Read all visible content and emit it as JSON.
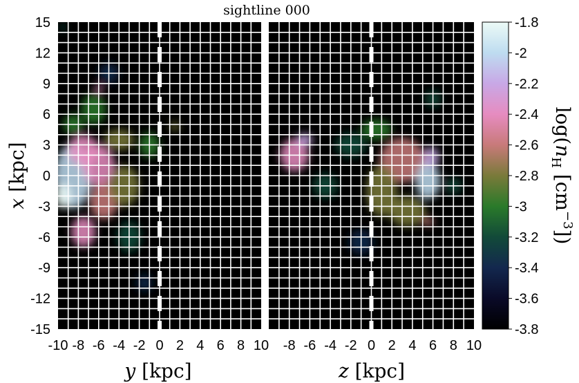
{
  "chart_data": {
    "type": "heatmap",
    "title": "sightline 000",
    "colorbar": {
      "label": "log(n_H [cm^-3])",
      "label_parts": {
        "log": "log(",
        "n": "n",
        "sub": "H",
        "unit": " [cm",
        "exp": "−3",
        "close": "])"
      },
      "range": [
        -3.8,
        -1.8
      ],
      "ticks": [
        "-1.8",
        "-2",
        "-2.2",
        "-2.4",
        "-2.6",
        "-2.8",
        "-3",
        "-3.2",
        "-3.4",
        "-3.6",
        "-3.8"
      ],
      "ticks_values": [
        -1.8,
        -2.0,
        -2.2,
        -2.4,
        -2.6,
        -2.8,
        -3.0,
        -3.2,
        -3.4,
        -3.6,
        -3.8
      ],
      "colors": [
        "#000000",
        "#0a0a28",
        "#13284e",
        "#124a39",
        "#2a7a2a",
        "#7a7a3a",
        "#c87a7a",
        "#e68cc0",
        "#c8a8e6",
        "#bedcf0",
        "#ecfaf6"
      ]
    },
    "panels": [
      {
        "xlabel": "y [kpc]",
        "xlabel_parts": {
          "var": "y",
          "unit": " [kpc]"
        },
        "xlim": [
          -10,
          10
        ],
        "xticks": [
          "-10",
          "-8",
          "-6",
          "-4",
          "-2",
          "0",
          "2",
          "4",
          "6",
          "8",
          "10"
        ],
        "xticks_values": [
          -10,
          -8,
          -6,
          -4,
          -2,
          0,
          2,
          4,
          6,
          8,
          10
        ],
        "blobs": [
          {
            "x": -8.5,
            "y": 0.0,
            "rx": 1.8,
            "ry": 3.2,
            "v": -2.0
          },
          {
            "x": -9.5,
            "y": -2.0,
            "rx": 0.8,
            "ry": 1.2,
            "v": -1.9
          },
          {
            "x": -7.5,
            "y": 2.5,
            "rx": 1.5,
            "ry": 1.5,
            "v": -2.4
          },
          {
            "x": -6.0,
            "y": 1.0,
            "rx": 1.6,
            "ry": 2.0,
            "v": -2.5
          },
          {
            "x": -5.5,
            "y": -2.5,
            "rx": 1.4,
            "ry": 1.8,
            "v": -2.6
          },
          {
            "x": -7.5,
            "y": -5.5,
            "rx": 1.2,
            "ry": 1.5,
            "v": -2.5
          },
          {
            "x": -4.0,
            "y": 3.5,
            "rx": 1.5,
            "ry": 1.0,
            "v": -2.8
          },
          {
            "x": -3.5,
            "y": -1.0,
            "rx": 1.5,
            "ry": 2.0,
            "v": -2.9
          },
          {
            "x": -6.5,
            "y": 6.5,
            "rx": 1.2,
            "ry": 1.5,
            "v": -3.0
          },
          {
            "x": -6.0,
            "y": 8.5,
            "rx": 0.4,
            "ry": 0.4,
            "v": -2.4
          },
          {
            "x": -1.0,
            "y": 3.0,
            "rx": 1.0,
            "ry": 1.2,
            "v": -3.0
          },
          {
            "x": -3.0,
            "y": -6.0,
            "rx": 1.2,
            "ry": 1.5,
            "v": -3.1
          },
          {
            "x": -8.5,
            "y": 5.0,
            "rx": 1.0,
            "ry": 1.0,
            "v": -3.0
          },
          {
            "x": 1.5,
            "y": 4.8,
            "rx": 0.5,
            "ry": 0.4,
            "v": -2.9
          },
          {
            "x": -9.5,
            "y": 14.5,
            "rx": 0.3,
            "ry": 0.4,
            "v": -3.2
          },
          {
            "x": -5.0,
            "y": 10.0,
            "rx": 1.0,
            "ry": 1.0,
            "v": -3.4
          },
          {
            "x": -1.5,
            "y": -10.5,
            "rx": 0.8,
            "ry": 0.8,
            "v": -3.4
          }
        ]
      },
      {
        "xlabel": "z [kpc]",
        "xlabel_parts": {
          "var": "z",
          "unit": " [kpc]"
        },
        "xlim": [
          -10,
          10
        ],
        "xticks": [
          "-8",
          "-6",
          "-4",
          "-2",
          "0",
          "2",
          "4",
          "6",
          "8",
          "10"
        ],
        "xticks_values": [
          -8,
          -6,
          -4,
          -2,
          0,
          2,
          4,
          6,
          8,
          10
        ],
        "blobs": [
          {
            "x": -7.5,
            "y": 2.0,
            "rx": 1.4,
            "ry": 1.6,
            "v": -2.5
          },
          {
            "x": -6.5,
            "y": 3.5,
            "rx": 0.8,
            "ry": 0.6,
            "v": -2.3
          },
          {
            "x": 3.0,
            "y": 1.5,
            "rx": 2.2,
            "ry": 2.2,
            "v": -2.6
          },
          {
            "x": 5.5,
            "y": -0.5,
            "rx": 1.2,
            "ry": 1.8,
            "v": -2.0
          },
          {
            "x": 5.8,
            "y": 1.8,
            "rx": 0.8,
            "ry": 1.0,
            "v": -2.2
          },
          {
            "x": 1.0,
            "y": -1.5,
            "rx": 1.5,
            "ry": 2.5,
            "v": -2.9
          },
          {
            "x": 3.5,
            "y": -3.5,
            "rx": 1.8,
            "ry": 1.5,
            "v": -2.8
          },
          {
            "x": 0.5,
            "y": 4.5,
            "rx": 1.5,
            "ry": 1.0,
            "v": -3.0
          },
          {
            "x": -2.0,
            "y": 3.0,
            "rx": 1.5,
            "ry": 1.2,
            "v": -3.2
          },
          {
            "x": -4.5,
            "y": -1.0,
            "rx": 1.2,
            "ry": 1.2,
            "v": -3.3
          },
          {
            "x": 5.5,
            "y": -4.5,
            "rx": 0.6,
            "ry": 0.4,
            "v": -2.6
          },
          {
            "x": 6.0,
            "y": 7.5,
            "rx": 0.8,
            "ry": 0.8,
            "v": -3.2
          },
          {
            "x": 8.0,
            "y": -1.0,
            "rx": 0.8,
            "ry": 0.8,
            "v": -3.3
          },
          {
            "x": -1.0,
            "y": -6.5,
            "rx": 1.2,
            "ry": 1.2,
            "v": -3.4
          }
        ]
      }
    ],
    "ylabel": "x [kpc]",
    "ylabel_parts": {
      "var": "x",
      "unit": " [kpc]"
    },
    "ylim": [
      -15,
      15
    ],
    "yticks": [
      "15",
      "12",
      "9",
      "6",
      "3",
      "0",
      "-3",
      "-6",
      "-9",
      "-12",
      "-15"
    ],
    "yticks_values": [
      15,
      12,
      9,
      6,
      3,
      0,
      -3,
      -6,
      -9,
      -12,
      -15
    ],
    "grid": true
  }
}
